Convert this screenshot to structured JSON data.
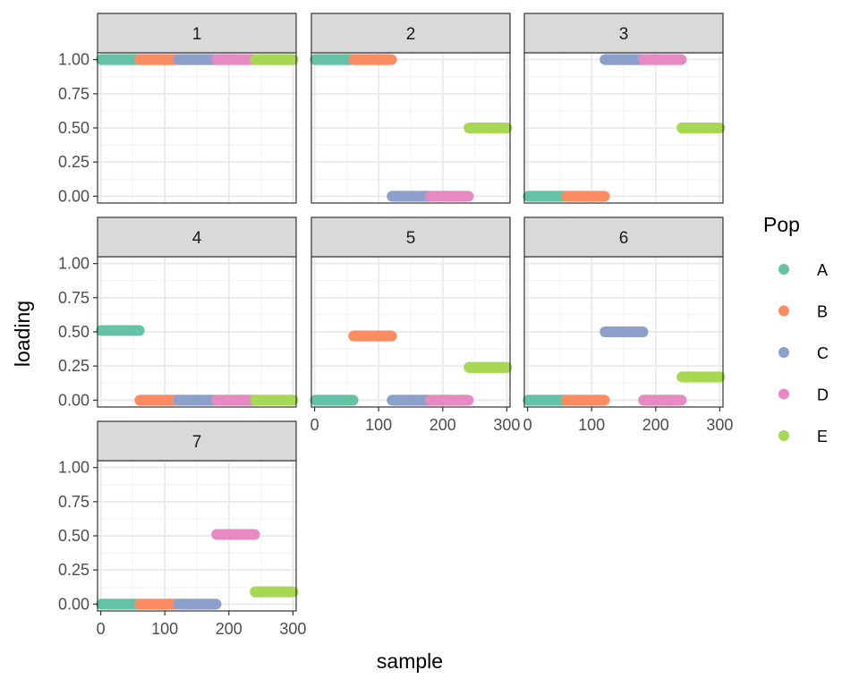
{
  "chart_data": {
    "type": "scatter",
    "xlabel": "sample",
    "ylabel": "loading",
    "xlim": [
      -5,
      305
    ],
    "ylim": [
      -0.05,
      1.05
    ],
    "x_ticks": [
      0,
      100,
      200,
      300
    ],
    "x_tick_labels": [
      "0",
      "100",
      "200",
      "300"
    ],
    "y_ticks": [
      0,
      0.25,
      0.5,
      0.75,
      1
    ],
    "y_tick_labels": [
      "0.00",
      "0.25",
      "0.50",
      "0.75",
      "1.00"
    ],
    "grid": true,
    "legend": {
      "title": "Pop",
      "placement": "right",
      "entries": [
        {
          "label": "A",
          "color": "#66C2A5"
        },
        {
          "label": "B",
          "color": "#FC8D62"
        },
        {
          "label": "C",
          "color": "#8DA0CB"
        },
        {
          "label": "D",
          "color": "#E78AC3"
        },
        {
          "label": "E",
          "color": "#A6D854"
        }
      ]
    },
    "populations": [
      {
        "name": "A",
        "x_range": [
          1,
          60
        ]
      },
      {
        "name": "B",
        "x_range": [
          61,
          120
        ]
      },
      {
        "name": "C",
        "x_range": [
          121,
          180
        ]
      },
      {
        "name": "D",
        "x_range": [
          181,
          240
        ]
      },
      {
        "name": "E",
        "x_range": [
          241,
          300
        ]
      }
    ],
    "facets": [
      {
        "label": "1",
        "loadings": {
          "A": 1.0,
          "B": 1.0,
          "C": 1.0,
          "D": 1.0,
          "E": 1.0
        }
      },
      {
        "label": "2",
        "loadings": {
          "A": 1.0,
          "B": 1.0,
          "C": 0.0,
          "D": 0.0,
          "E": 0.5
        }
      },
      {
        "label": "3",
        "loadings": {
          "A": 0.0,
          "B": 0.0,
          "C": 1.0,
          "D": 1.0,
          "E": 0.5
        }
      },
      {
        "label": "4",
        "loadings": {
          "A": 0.51,
          "B": 0.0,
          "C": 0.0,
          "D": 0.0,
          "E": 0.0
        }
      },
      {
        "label": "5",
        "loadings": {
          "A": 0.0,
          "B": 0.47,
          "C": 0.0,
          "D": 0.0,
          "E": 0.24
        }
      },
      {
        "label": "6",
        "loadings": {
          "A": 0.0,
          "B": 0.0,
          "C": 0.5,
          "D": 0.0,
          "E": 0.17
        }
      },
      {
        "label": "7",
        "loadings": {
          "A": 0.0,
          "B": 0.0,
          "C": 0.0,
          "D": 0.51,
          "E": 0.09
        }
      }
    ]
  }
}
